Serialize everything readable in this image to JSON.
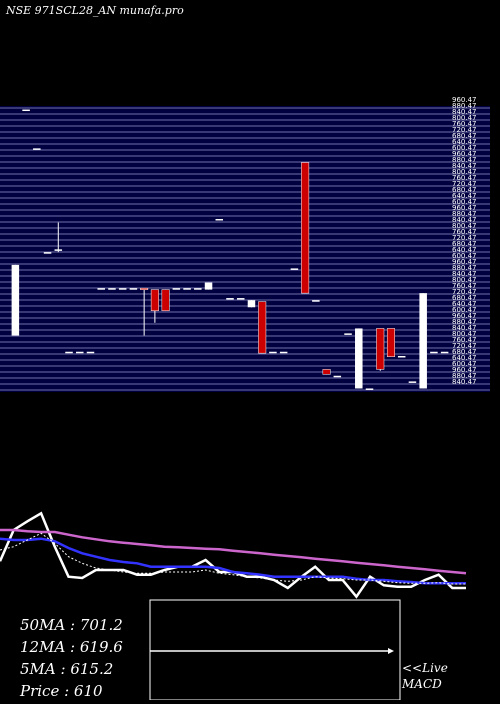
{
  "header": {
    "title": "NSE 971SCL28_AN munafa.pro"
  },
  "chart_data": [
    {
      "type": "candlestick",
      "title": "NSE 971SCL28_AN munafa.pro",
      "ylim": [
        560,
        965
      ],
      "price_labels": [
        "960.47",
        "880.47",
        "840.47",
        "800.47",
        "760.47",
        "720.47",
        "680.47",
        "640.47",
        "600.47"
      ],
      "candles": [
        {
          "o": 640,
          "h": 740,
          "l": 640,
          "c": 740
        },
        {
          "o": 960,
          "h": 960,
          "l": 960,
          "c": 960
        },
        {
          "o": 905,
          "h": 905,
          "l": 905,
          "c": 905
        },
        {
          "o": 758,
          "h": 758,
          "l": 758,
          "c": 758
        },
        {
          "o": 760,
          "h": 800,
          "l": 758,
          "c": 762
        },
        {
          "o": 617,
          "h": 617,
          "l": 617,
          "c": 617
        },
        {
          "o": 617,
          "h": 617,
          "l": 617,
          "c": 617
        },
        {
          "o": 617,
          "h": 617,
          "l": 617,
          "c": 617
        },
        {
          "o": 707,
          "h": 707,
          "l": 707,
          "c": 707
        },
        {
          "o": 707,
          "h": 707,
          "l": 707,
          "c": 707
        },
        {
          "o": 707,
          "h": 707,
          "l": 707,
          "c": 707
        },
        {
          "o": 707,
          "h": 707,
          "l": 707,
          "c": 707
        },
        {
          "o": 707,
          "h": 705,
          "l": 640,
          "c": 705
        },
        {
          "o": 705,
          "h": 705,
          "l": 658,
          "c": 675
        },
        {
          "o": 705,
          "h": 705,
          "l": 675,
          "c": 675
        },
        {
          "o": 707,
          "h": 707,
          "l": 707,
          "c": 707
        },
        {
          "o": 707,
          "h": 707,
          "l": 707,
          "c": 707
        },
        {
          "o": 707,
          "h": 707,
          "l": 707,
          "c": 707
        },
        {
          "o": 705,
          "h": 715,
          "l": 705,
          "c": 715
        },
        {
          "o": 805,
          "h": 805,
          "l": 805,
          "c": 805
        },
        {
          "o": 693,
          "h": 693,
          "l": 693,
          "c": 693
        },
        {
          "o": 693,
          "h": 693,
          "l": 693,
          "c": 693
        },
        {
          "o": 680,
          "h": 690,
          "l": 680,
          "c": 690
        },
        {
          "o": 688,
          "h": 688,
          "l": 615,
          "c": 615
        },
        {
          "o": 617,
          "h": 617,
          "l": 617,
          "c": 617
        },
        {
          "o": 617,
          "h": 617,
          "l": 617,
          "c": 617
        },
        {
          "o": 735,
          "h": 735,
          "l": 735,
          "c": 735
        },
        {
          "o": 885,
          "h": 885,
          "l": 700,
          "c": 700
        },
        {
          "o": 690,
          "h": 690,
          "l": 690,
          "c": 690
        },
        {
          "o": 592,
          "h": 592,
          "l": 585,
          "c": 585
        },
        {
          "o": 583,
          "h": 583,
          "l": 583,
          "c": 583
        },
        {
          "o": 643,
          "h": 643,
          "l": 643,
          "c": 643
        },
        {
          "o": 565,
          "h": 650,
          "l": 565,
          "c": 650
        },
        {
          "o": 565,
          "h": 565,
          "l": 565,
          "c": 565
        },
        {
          "o": 650,
          "h": 650,
          "l": 590,
          "c": 592
        },
        {
          "o": 650,
          "h": 650,
          "l": 610,
          "c": 610
        },
        {
          "o": 611,
          "h": 611,
          "l": 611,
          "c": 611
        },
        {
          "o": 575,
          "h": 575,
          "l": 575,
          "c": 575
        },
        {
          "o": 565,
          "h": 700,
          "l": 565,
          "c": 700
        },
        {
          "o": 617,
          "h": 617,
          "l": 617,
          "c": 617
        },
        {
          "o": 617,
          "h": 617,
          "l": 617,
          "c": 617
        }
      ]
    },
    {
      "type": "line",
      "title": "",
      "series": [
        {
          "color": "#ffffff",
          "values": [
            0.28,
            0.75,
            0.88,
            1.0,
            0.5,
            0.05,
            0.03,
            0.15,
            0.15,
            0.15,
            0.08,
            0.08,
            0.15,
            0.2,
            0.2,
            0.3,
            0.12,
            0.12,
            0.05,
            0.05,
            0.0,
            -0.12,
            0.05,
            0.2,
            0.0,
            0.0,
            -0.25,
            0.05,
            -0.08,
            -0.1,
            -0.1,
            0.0,
            0.08,
            -0.12,
            -0.12
          ]
        },
        {
          "color": "#3333ff",
          "values": [
            0.62,
            0.6,
            0.6,
            0.62,
            0.58,
            0.48,
            0.4,
            0.35,
            0.3,
            0.27,
            0.25,
            0.2,
            0.2,
            0.2,
            0.2,
            0.2,
            0.18,
            0.12,
            0.1,
            0.08,
            0.05,
            0.05,
            0.05,
            0.05,
            0.05,
            0.05,
            0.02,
            0.0,
            0.0,
            -0.02,
            -0.03,
            -0.05,
            -0.05,
            -0.05,
            -0.05
          ]
        },
        {
          "color": "#cc66cc",
          "values": [
            0.75,
            0.75,
            0.73,
            0.72,
            0.72,
            0.68,
            0.64,
            0.61,
            0.58,
            0.56,
            0.54,
            0.52,
            0.5,
            0.49,
            0.48,
            0.47,
            0.46,
            0.44,
            0.42,
            0.4,
            0.38,
            0.36,
            0.34,
            0.32,
            0.3,
            0.28,
            0.26,
            0.24,
            0.22,
            0.2,
            0.18,
            0.16,
            0.14,
            0.12,
            0.1
          ]
        },
        {
          "color": "#ffffff",
          "dashed": true,
          "values": [
            0.45,
            0.5,
            0.6,
            0.7,
            0.55,
            0.35,
            0.25,
            0.18,
            0.15,
            0.12,
            0.1,
            0.1,
            0.12,
            0.12,
            0.12,
            0.15,
            0.1,
            0.08,
            0.05,
            0.03,
            0.0,
            -0.02,
            0.0,
            0.05,
            0.03,
            0.02,
            0.0,
            0.0,
            -0.02,
            -0.04,
            -0.05,
            -0.05,
            -0.04,
            -0.06,
            -0.06
          ]
        }
      ]
    },
    {
      "type": "line",
      "title": "",
      "series": [
        {
          "color": "#ffffff",
          "values": [
            0.5,
            0.5,
            0.5,
            0.5,
            0.5,
            0.5,
            0.5,
            0.5,
            0.5,
            0.5
          ]
        }
      ]
    }
  ],
  "ma": {
    "ma50": "50MA : 701.2",
    "ma12": "12MA : 619.6",
    "ma5": "5MA : 615.2",
    "price": "Price   : 610"
  },
  "macd": {
    "line1": "<<Live",
    "line2": "MACD"
  },
  "colors": {
    "background": "#000000",
    "panel": "#000040",
    "gridline": "#6f6fa8",
    "bear": "#cc0000",
    "bull": "#ffffff"
  }
}
